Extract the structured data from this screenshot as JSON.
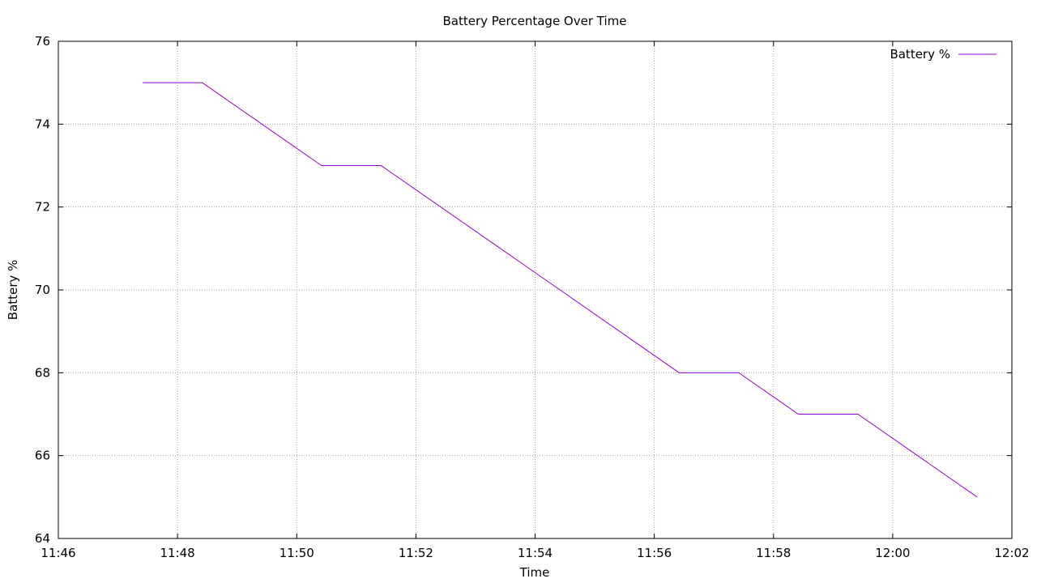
{
  "chart_data": {
    "type": "line",
    "title": "Battery Percentage Over Time",
    "xlabel": "Time",
    "ylabel": "Battery %",
    "xlim": [
      "11:46",
      "12:02"
    ],
    "ylim": [
      64,
      76
    ],
    "x_ticks": [
      "11:46",
      "11:48",
      "11:50",
      "11:52",
      "11:54",
      "11:56",
      "11:58",
      "12:00",
      "12:02"
    ],
    "y_ticks": [
      64,
      66,
      68,
      70,
      72,
      74,
      76
    ],
    "grid": true,
    "legend_position": "top-right",
    "series": [
      {
        "name": "Battery %",
        "color": "#9400d3",
        "x": [
          "11:47:25",
          "11:48:25",
          "11:50:25",
          "11:51:25",
          "11:56:25",
          "11:57:25",
          "11:58:25",
          "11:59:25",
          "12:01:25"
        ],
        "y": [
          75,
          75,
          73,
          73,
          68,
          68,
          67,
          67,
          65
        ]
      }
    ]
  }
}
